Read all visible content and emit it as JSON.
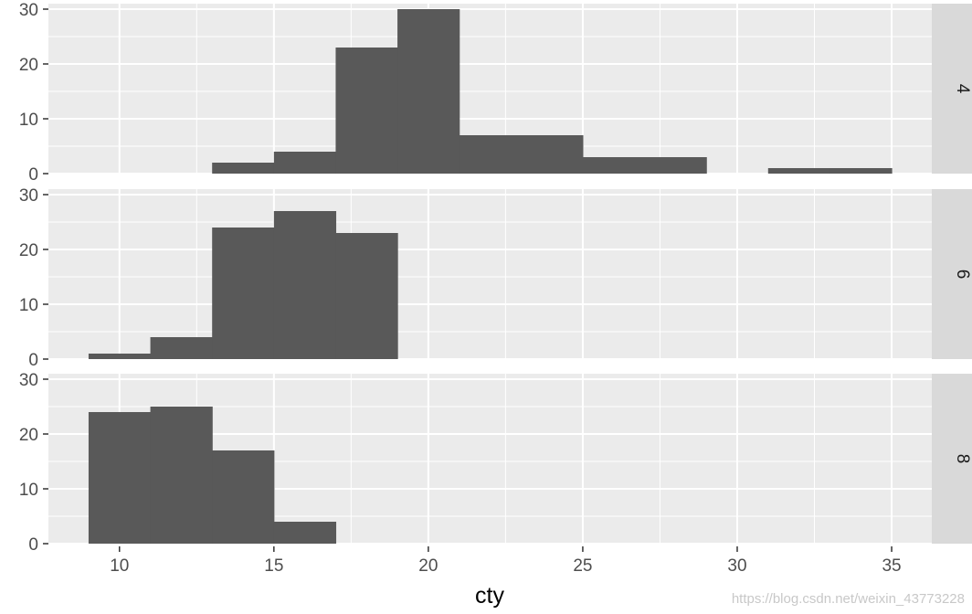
{
  "chart_data": {
    "type": "bar",
    "facet_by": "cyl",
    "xlabel": "cty",
    "ylabel": "",
    "xlim": [
      7.7,
      36.3
    ],
    "ylim": [
      0,
      31
    ],
    "x_ticks": [
      10,
      15,
      20,
      25,
      30,
      35
    ],
    "y_ticks": [
      0,
      10,
      20,
      30
    ],
    "bins": [
      [
        9,
        11
      ],
      [
        11,
        13
      ],
      [
        13,
        15
      ],
      [
        15,
        17
      ],
      [
        17,
        19
      ],
      [
        19,
        21
      ],
      [
        21,
        23
      ],
      [
        23,
        25
      ],
      [
        25,
        27
      ],
      [
        27,
        29
      ],
      [
        29,
        31
      ],
      [
        31,
        33
      ],
      [
        33,
        35
      ]
    ],
    "panels": [
      {
        "strip_label": "4",
        "counts": [
          0,
          0,
          2,
          4,
          23,
          30,
          7,
          7,
          3,
          3,
          0,
          1,
          1
        ]
      },
      {
        "strip_label": "6",
        "counts": [
          1,
          4,
          24,
          27,
          23,
          0,
          0,
          0,
          0,
          0,
          0,
          0,
          0
        ]
      },
      {
        "strip_label": "8",
        "counts": [
          24,
          25,
          17,
          4,
          0,
          0,
          0,
          0,
          0,
          0,
          0,
          0,
          0
        ]
      }
    ],
    "colors": {
      "bar": "#595959",
      "panel_bg": "#ebebeb",
      "grid_major": "#ffffff",
      "strip_bg": "#d9d9d9"
    },
    "grid": true,
    "legend": "none"
  },
  "watermark": "https://blog.csdn.net/weixin_43773228"
}
